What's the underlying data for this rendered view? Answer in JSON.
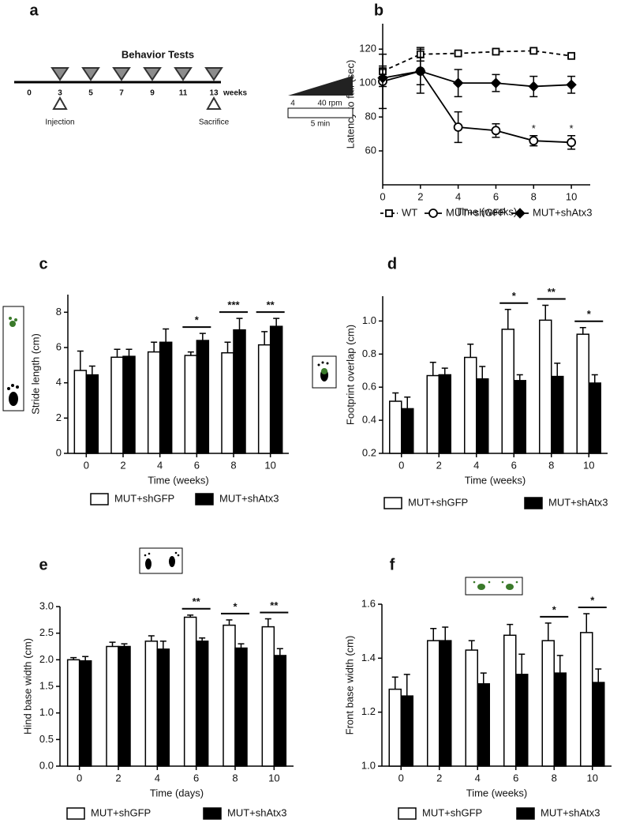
{
  "chart_data": [
    {
      "type": "timeline",
      "panel_label": "a",
      "title": "Behavior Tests",
      "xticks": [
        0,
        3,
        5,
        7,
        9,
        11,
        13
      ],
      "unit": "weeks",
      "tests": [
        3,
        5,
        7,
        9,
        11,
        13
      ],
      "events": [
        {
          "label": "Injection",
          "x": 3
        },
        {
          "label": "Sacrifice",
          "x": 13
        }
      ]
    },
    {
      "type": "line",
      "panel_label": "b",
      "xlabel": "Time (weeks)",
      "ylabel": "Latency to fall (sec)",
      "x": [
        0,
        2,
        4,
        6,
        8,
        10
      ],
      "xlim": [
        0,
        11
      ],
      "xticks": [
        0,
        2,
        4,
        6,
        8,
        10
      ],
      "ylim": [
        40,
        135
      ],
      "yticks": [
        60,
        80,
        100,
        120
      ],
      "legend": "bottom",
      "inset": {
        "start": "4",
        "end": "40 rpm",
        "duration": "5 min"
      },
      "series": [
        {
          "name": "WT",
          "color": "#000000",
          "marker": "square",
          "dash": true,
          "values": [
            107,
            117,
            117.5,
            118.5,
            119,
            116
          ],
          "errors": [
            3,
            4,
            1,
            1,
            1,
            1
          ]
        },
        {
          "name": "MUT+shGFP",
          "color": "#000000",
          "marker": "circle",
          "dash": false,
          "values": [
            101,
            107,
            74,
            72,
            66,
            65
          ],
          "errors": [
            16,
            13,
            9,
            4,
            3,
            4
          ],
          "significance": [
            null,
            null,
            null,
            null,
            "*",
            "*"
          ]
        },
        {
          "name": "MUT+shAtx3",
          "color": "#000000",
          "marker": "diamond",
          "dash": false,
          "values": [
            103,
            107,
            100,
            100,
            98,
            99
          ],
          "errors": [
            5,
            8,
            8,
            5,
            6,
            5
          ]
        }
      ]
    },
    {
      "type": "bar",
      "panel_label": "c",
      "xlabel": "Time (weeks)",
      "ylabel": "Stride length (cm)",
      "categories": [
        "0",
        "2",
        "4",
        "6",
        "8",
        "10"
      ],
      "ylim": [
        0,
        9
      ],
      "yticks": [
        0,
        2,
        4,
        6,
        8
      ],
      "legend": "bottom",
      "significance": [
        null,
        null,
        null,
        "*",
        "***",
        "**"
      ],
      "series": [
        {
          "name": "MUT+shGFP",
          "color": "#ffffff",
          "values": [
            4.7,
            5.45,
            5.75,
            5.55,
            5.7,
            6.15
          ],
          "errors": [
            1.1,
            0.45,
            0.55,
            0.2,
            0.6,
            0.75
          ]
        },
        {
          "name": "MUT+shAtx3",
          "color": "#000000",
          "values": [
            4.45,
            5.5,
            6.3,
            6.4,
            7.0,
            7.2
          ],
          "errors": [
            0.5,
            0.4,
            0.75,
            0.4,
            0.65,
            0.45
          ]
        }
      ]
    },
    {
      "type": "bar",
      "panel_label": "d",
      "xlabel": "Time (weeks)",
      "ylabel": "Footprint overlap (cm)",
      "categories": [
        "0",
        "2",
        "4",
        "6",
        "8",
        "10"
      ],
      "ylim": [
        0.2,
        1.15
      ],
      "yticks": [
        0.2,
        0.4,
        0.6,
        0.8,
        {
          "value": 1,
          "label": "1.0"
        }
      ],
      "legend": "bottom",
      "significance": [
        null,
        null,
        null,
        "*",
        "**",
        "*"
      ],
      "series": [
        {
          "name": "MUT+shGFP",
          "color": "#ffffff",
          "values": [
            0.515,
            0.67,
            0.78,
            0.95,
            1.005,
            0.92
          ],
          "errors": [
            0.05,
            0.08,
            0.08,
            0.12,
            0.09,
            0.04
          ]
        },
        {
          "name": "MUT+shAtx3",
          "color": "#000000",
          "values": [
            0.47,
            0.675,
            0.65,
            0.64,
            0.665,
            0.625
          ],
          "errors": [
            0.07,
            0.04,
            0.075,
            0.035,
            0.08,
            0.05
          ]
        }
      ]
    },
    {
      "type": "bar",
      "panel_label": "e",
      "xlabel": "Time (days)",
      "ylabel": "Hind base width (cm)",
      "categories": [
        "0",
        "2",
        "4",
        "6",
        "8",
        "10"
      ],
      "ylim": [
        0,
        3
      ],
      "yticks": [
        {
          "value": 0,
          "label": "0.0"
        },
        0.5,
        {
          "value": 1,
          "label": "1.0"
        },
        1.5,
        {
          "value": 2,
          "label": "2.0"
        },
        2.5,
        {
          "value": 3,
          "label": "3.0"
        }
      ],
      "legend": "bottom",
      "significance": [
        null,
        null,
        null,
        "**",
        "*",
        "**"
      ],
      "series": [
        {
          "name": "MUT+shGFP",
          "color": "#ffffff",
          "values": [
            2.0,
            2.25,
            2.35,
            2.8,
            2.65,
            2.62
          ],
          "errors": [
            0.04,
            0.08,
            0.1,
            0.04,
            0.1,
            0.15
          ]
        },
        {
          "name": "MUT+shAtx3",
          "color": "#000000",
          "values": [
            1.98,
            2.25,
            2.2,
            2.35,
            2.22,
            2.08
          ],
          "errors": [
            0.08,
            0.05,
            0.15,
            0.06,
            0.08,
            0.13
          ]
        }
      ]
    },
    {
      "type": "bar",
      "panel_label": "f",
      "xlabel": "Time (weeks)",
      "ylabel": "Front base width (cm)",
      "categories": [
        "0",
        "2",
        "4",
        "6",
        "8",
        "10"
      ],
      "ylim": [
        1,
        1.6
      ],
      "yticks": [
        {
          "value": 1,
          "label": "1.0"
        },
        1.2,
        1.4,
        1.6
      ],
      "legend": "bottom",
      "significance": [
        null,
        null,
        null,
        null,
        "*",
        "*"
      ],
      "series": [
        {
          "name": "MUT+shGFP",
          "color": "#ffffff",
          "values": [
            1.285,
            1.465,
            1.43,
            1.485,
            1.465,
            1.495
          ],
          "errors": [
            0.045,
            0.045,
            0.035,
            0.04,
            0.065,
            0.07
          ]
        },
        {
          "name": "MUT+shAtx3",
          "color": "#000000",
          "values": [
            1.26,
            1.465,
            1.305,
            1.34,
            1.345,
            1.31
          ],
          "errors": [
            0.08,
            0.05,
            0.04,
            0.075,
            0.065,
            0.05
          ]
        }
      ]
    }
  ]
}
